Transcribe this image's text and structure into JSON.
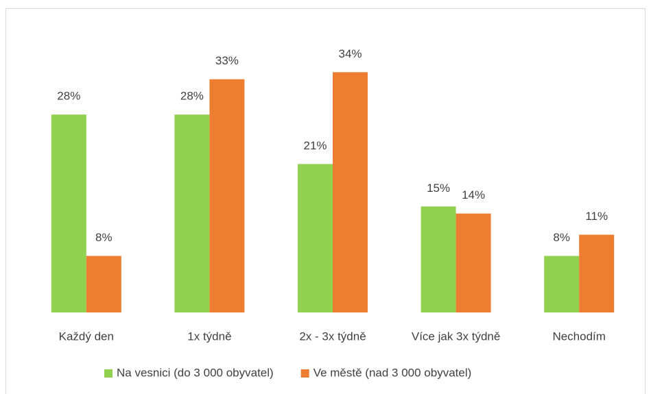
{
  "chart_data": {
    "type": "bar",
    "categories": [
      "Každý den",
      "1x týdně",
      "2x - 3x týdně",
      "Více jak 3x týdně",
      "Nechodím"
    ],
    "series": [
      {
        "name": "Na vesnici (do 3 000 obyvatel)",
        "color": "#92d050",
        "values": [
          28,
          28,
          21,
          15,
          8
        ],
        "value_labels": [
          "28%",
          "28%",
          "21%",
          "15%",
          "8%"
        ]
      },
      {
        "name": "Ve městě (nad 3 000 obyvatel)",
        "color": "#ed7d31",
        "values": [
          8,
          33,
          34,
          14,
          11
        ],
        "value_labels": [
          "8%",
          "33%",
          "34%",
          "14%",
          "11%"
        ]
      }
    ],
    "ylim": [
      0,
      35
    ],
    "legend": "bottom"
  }
}
